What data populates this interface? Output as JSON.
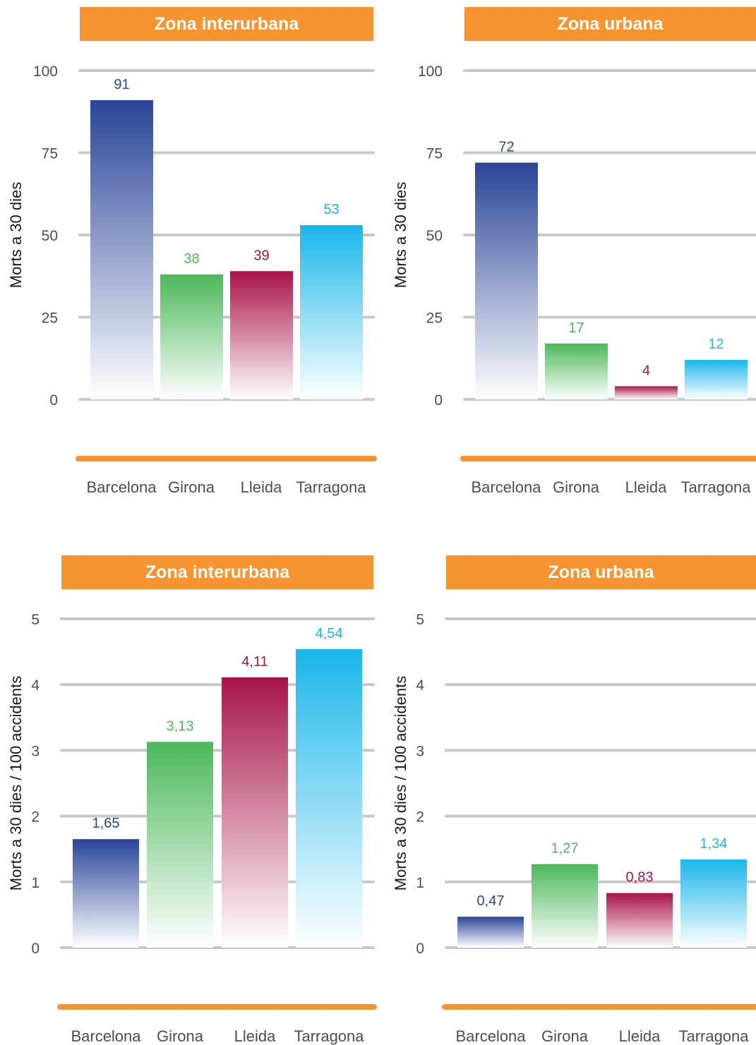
{
  "colors": {
    "accent_orange": "#f7942f",
    "barcelona": "#2a4598",
    "girona": "#4cb85a",
    "lleida": "#a8144a",
    "tarragona": "#1ab6ea",
    "grid": "#c5c9cc",
    "tick_text": "#4d4d4d"
  },
  "chart_data": [
    {
      "type": "bar",
      "title": "Zona interurbana",
      "ylabel": "Morts a 30 dies",
      "categories": [
        "Barcelona",
        "Girona",
        "Lleida",
        "Tarragona"
      ],
      "values": [
        91,
        38,
        39,
        53
      ],
      "value_labels": [
        "91",
        "38",
        "39",
        "53"
      ],
      "yticks": [
        0,
        25,
        50,
        75,
        100
      ],
      "ytick_labels": [
        "0",
        "25",
        "50",
        "75",
        "100"
      ],
      "ylim": [
        0,
        100
      ],
      "grid": true
    },
    {
      "type": "bar",
      "title": "Zona urbana",
      "ylabel": "Morts a 30 dies",
      "categories": [
        "Barcelona",
        "Girona",
        "Lleida",
        "Tarragona"
      ],
      "values": [
        72,
        17,
        4,
        12
      ],
      "value_labels": [
        "72",
        "17",
        "4",
        "12"
      ],
      "yticks": [
        0,
        25,
        50,
        75,
        100
      ],
      "ytick_labels": [
        "0",
        "25",
        "50",
        "75",
        "100"
      ],
      "ylim": [
        0,
        100
      ],
      "grid": true
    },
    {
      "type": "bar",
      "title": "Zona interurbana",
      "ylabel": "Morts a 30 dies / 100 accidents",
      "categories": [
        "Barcelona",
        "Girona",
        "Lleida",
        "Tarragona"
      ],
      "values": [
        1.65,
        3.13,
        4.11,
        4.54
      ],
      "value_labels": [
        "1,65",
        "3,13",
        "4,11",
        "4,54"
      ],
      "yticks": [
        0,
        1,
        2,
        3,
        4,
        5
      ],
      "ytick_labels": [
        "0",
        "1",
        "2",
        "3",
        "4",
        "5"
      ],
      "ylim": [
        0,
        5
      ],
      "grid": true
    },
    {
      "type": "bar",
      "title": "Zona urbana",
      "ylabel": "Morts a 30 dies / 100 accidents",
      "categories": [
        "Barcelona",
        "Girona",
        "Lleida",
        "Tarragona"
      ],
      "values": [
        0.47,
        1.27,
        0.83,
        1.34
      ],
      "value_labels": [
        "0,47",
        "1,27",
        "0,83",
        "1,34"
      ],
      "yticks": [
        0,
        1,
        2,
        3,
        4,
        5
      ],
      "ytick_labels": [
        "0",
        "1",
        "2",
        "3",
        "4",
        "5"
      ],
      "ylim": [
        0,
        5
      ],
      "grid": true
    }
  ]
}
